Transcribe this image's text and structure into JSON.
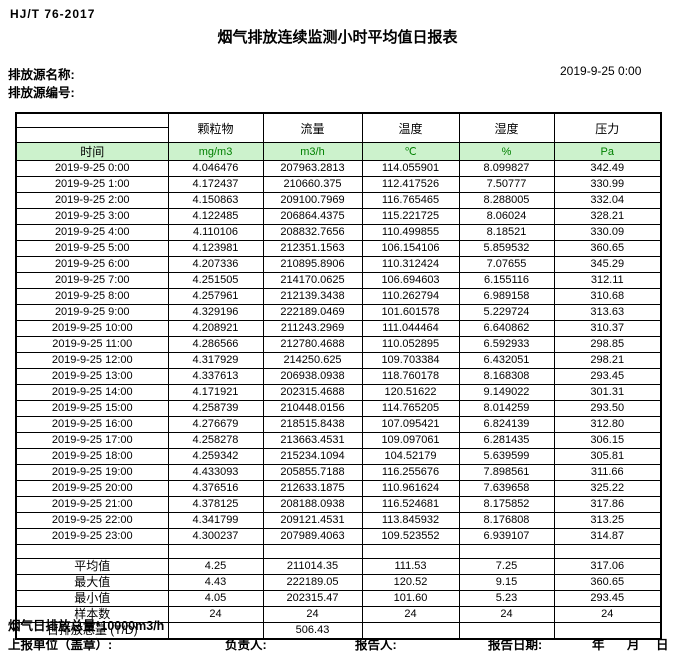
{
  "header": {
    "standard_code": "HJ/T 76-2017",
    "title": "烟气排放连续监测小时平均值日报表",
    "source_name_label": "排放源名称:",
    "source_id_label": "排放源编号:",
    "datetime": "2019-9-25 0:00"
  },
  "colors": {
    "header_row_bg": "#ccf2cc",
    "unit_text": "#008000",
    "border": "#000000"
  },
  "table": {
    "time_header": "时间",
    "pollutant_headers": [
      "颗粒物",
      "流量",
      "温度",
      "湿度",
      "压力"
    ],
    "units": [
      "mg/m3",
      "m3/h",
      "℃",
      "%",
      "Pa"
    ],
    "rows": [
      {
        "time": "2019-9-25 0:00",
        "values": [
          "4.046476",
          "207963.2813",
          "114.055901",
          "8.099827",
          "342.49"
        ]
      },
      {
        "time": "2019-9-25 1:00",
        "values": [
          "4.172437",
          "210660.375",
          "112.417526",
          "7.50777",
          "330.99"
        ]
      },
      {
        "time": "2019-9-25 2:00",
        "values": [
          "4.150863",
          "209100.7969",
          "116.765465",
          "8.288005",
          "332.04"
        ]
      },
      {
        "time": "2019-9-25 3:00",
        "values": [
          "4.122485",
          "206864.4375",
          "115.221725",
          "8.06024",
          "328.21"
        ]
      },
      {
        "time": "2019-9-25 4:00",
        "values": [
          "4.110106",
          "208832.7656",
          "110.499855",
          "8.18521",
          "330.09"
        ]
      },
      {
        "time": "2019-9-25 5:00",
        "values": [
          "4.123981",
          "212351.1563",
          "106.154106",
          "5.859532",
          "360.65"
        ]
      },
      {
        "time": "2019-9-25 6:00",
        "values": [
          "4.207336",
          "210895.8906",
          "110.312424",
          "7.07655",
          "345.29"
        ]
      },
      {
        "time": "2019-9-25 7:00",
        "values": [
          "4.251505",
          "214170.0625",
          "106.694603",
          "6.155116",
          "312.11"
        ]
      },
      {
        "time": "2019-9-25 8:00",
        "values": [
          "4.257961",
          "212139.3438",
          "110.262794",
          "6.989158",
          "310.68"
        ]
      },
      {
        "time": "2019-9-25 9:00",
        "values": [
          "4.329196",
          "222189.0469",
          "101.601578",
          "5.229724",
          "313.63"
        ]
      },
      {
        "time": "2019-9-25 10:00",
        "values": [
          "4.208921",
          "211243.2969",
          "111.044464",
          "6.640862",
          "310.37"
        ]
      },
      {
        "time": "2019-9-25 11:00",
        "values": [
          "4.286566",
          "212780.4688",
          "110.052895",
          "6.592933",
          "298.85"
        ]
      },
      {
        "time": "2019-9-25 12:00",
        "values": [
          "4.317929",
          "214250.625",
          "109.703384",
          "6.432051",
          "298.21"
        ]
      },
      {
        "time": "2019-9-25 13:00",
        "values": [
          "4.337613",
          "206938.0938",
          "118.760178",
          "8.168308",
          "293.45"
        ]
      },
      {
        "time": "2019-9-25 14:00",
        "values": [
          "4.171921",
          "202315.4688",
          "120.51622",
          "9.149022",
          "301.31"
        ]
      },
      {
        "time": "2019-9-25 15:00",
        "values": [
          "4.258739",
          "210448.0156",
          "114.765205",
          "8.014259",
          "293.50"
        ]
      },
      {
        "time": "2019-9-25 16:00",
        "values": [
          "4.276679",
          "218515.8438",
          "107.095421",
          "6.824139",
          "312.80"
        ]
      },
      {
        "time": "2019-9-25 17:00",
        "values": [
          "4.258278",
          "213663.4531",
          "109.097061",
          "6.281435",
          "306.15"
        ]
      },
      {
        "time": "2019-9-25 18:00",
        "values": [
          "4.259342",
          "215234.1094",
          "104.52179",
          "5.639599",
          "305.81"
        ]
      },
      {
        "time": "2019-9-25 19:00",
        "values": [
          "4.433093",
          "205855.7188",
          "116.255676",
          "7.898561",
          "311.66"
        ]
      },
      {
        "time": "2019-9-25 20:00",
        "values": [
          "4.376516",
          "212633.1875",
          "110.961624",
          "7.639658",
          "325.22"
        ]
      },
      {
        "time": "2019-9-25 21:00",
        "values": [
          "4.378125",
          "208188.0938",
          "116.524681",
          "8.175852",
          "317.86"
        ]
      },
      {
        "time": "2019-9-25 22:00",
        "values": [
          "4.341799",
          "209121.4531",
          "113.845932",
          "8.176808",
          "313.25"
        ]
      },
      {
        "time": "2019-9-25 23:00",
        "values": [
          "4.300237",
          "207989.4063",
          "109.523552",
          "6.939107",
          "314.87"
        ]
      }
    ],
    "summary": [
      {
        "label": "平均值",
        "values": [
          "4.25",
          "211014.35",
          "111.53",
          "7.25",
          "317.06"
        ]
      },
      {
        "label": "最大值",
        "values": [
          "4.43",
          "222189.05",
          "120.52",
          "9.15",
          "360.65"
        ]
      },
      {
        "label": "最小值",
        "values": [
          "4.05",
          "202315.47",
          "101.60",
          "5.23",
          "293.45"
        ]
      },
      {
        "label": "样本数",
        "values": [
          "24",
          "24",
          "24",
          "24",
          "24"
        ]
      },
      {
        "label": "日排放总量 (T/D)",
        "values": [
          "",
          "506.43",
          "",
          "",
          ""
        ]
      }
    ]
  },
  "footer": {
    "note": "烟气日排放总量*10000m3/h",
    "report_unit_label": "上报单位（盖章）:",
    "responsible_label": "负责人:",
    "reporter_label": "报告人:",
    "report_date_label": "报告日期:",
    "year_label": "年",
    "month_label": "月",
    "day_label": "日"
  }
}
